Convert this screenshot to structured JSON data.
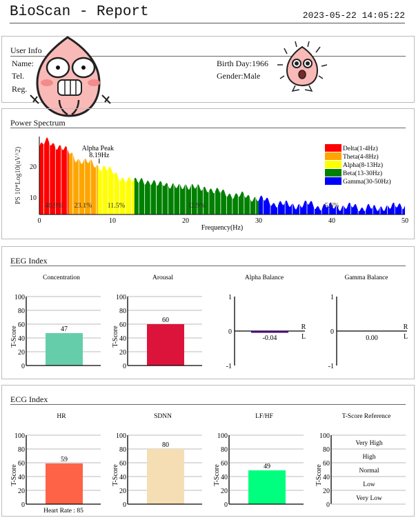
{
  "header": {
    "title": "BioScan - Report",
    "datetime": "2023-05-22 14:05:22"
  },
  "user_info": {
    "title": "User Info",
    "name_label": "Name:",
    "tel_label": "Tel.",
    "reg_label": "Reg.",
    "birthday_label": "Birth Day:1966",
    "gender_label": "Gender:Male"
  },
  "power_spectrum": {
    "title": "Power Spectrum",
    "chart_data": {
      "type": "area",
      "xlabel": "Frequency(Hz)",
      "ylabel": "PS 10*Log10(uV^2)",
      "xlim": [
        0,
        50
      ],
      "ylim": [
        4.5,
        29.5
      ],
      "xticks": [
        0,
        10,
        20,
        30,
        40,
        50
      ],
      "yticks": [
        10,
        20
      ],
      "grid": false,
      "legend_position": "top-right",
      "x": [
        0,
        1,
        2,
        3,
        4,
        5,
        6,
        7,
        8,
        9,
        10,
        11,
        12,
        13,
        14,
        15,
        16,
        17,
        18,
        19,
        20,
        21,
        22,
        23,
        24,
        25,
        26,
        27,
        28,
        29,
        30,
        31,
        32,
        33,
        34,
        35,
        36,
        37,
        38,
        39,
        40,
        41,
        42,
        43,
        44,
        45,
        46,
        47,
        48,
        49,
        50
      ],
      "y": [
        26,
        28,
        27,
        26,
        24.5,
        22.5,
        21.5,
        21,
        20,
        19.5,
        18,
        16.5,
        15.5,
        15,
        16,
        14.5,
        14,
        15,
        13.5,
        13,
        14,
        13.5,
        12.5,
        13,
        12,
        11.5,
        11,
        10.5,
        10.5,
        10,
        9.5,
        9,
        8,
        8,
        7.5,
        7.5,
        7.5,
        8,
        7,
        7,
        7,
        7,
        7,
        7,
        6.5,
        7,
        6,
        7,
        7,
        7,
        7.5
      ],
      "bands": [
        {
          "name": "Delta(1-4Hz)",
          "range": [
            0,
            4
          ],
          "color": "#ff0000",
          "percent": "46.9%"
        },
        {
          "name": "Theta(4-8Hz)",
          "range": [
            4,
            8
          ],
          "color": "#ffa500",
          "percent": "23.1%"
        },
        {
          "name": "Alpha(8-13Hz)",
          "range": [
            8,
            13
          ],
          "color": "#ffff00",
          "percent": "11.5%"
        },
        {
          "name": "Beta(13-30Hz)",
          "range": [
            13,
            30
          ],
          "color": "#008000",
          "percent": "12.9%"
        },
        {
          "name": "Gamma(30-50Hz)",
          "range": [
            30,
            50
          ],
          "color": "#0000ff",
          "percent": "5.6%"
        }
      ],
      "annotation": {
        "label": "Alpha Peak",
        "value": "8.19Hz",
        "x": 8.19
      }
    }
  },
  "eeg_index": {
    "title": "EEG Index",
    "chart_data": [
      {
        "type": "bar",
        "title": "Concentration",
        "ylabel": "T-Score",
        "ylim": [
          0,
          100
        ],
        "yticks": [
          0,
          20,
          40,
          60,
          80,
          100
        ],
        "value": 47,
        "label": "47",
        "color": "#66cdaa"
      },
      {
        "type": "bar",
        "title": "Arousal",
        "ylabel": "T-Score",
        "ylim": [
          0,
          100
        ],
        "yticks": [
          0,
          20,
          40,
          60,
          80,
          100
        ],
        "value": 60,
        "label": "60",
        "color": "#dc143c"
      },
      {
        "type": "balance",
        "title": "Alpha Balance",
        "ylim": [
          -1,
          1
        ],
        "yticks": [
          -1,
          0,
          1
        ],
        "value": -0.04,
        "label": "-0.04",
        "upper": "R",
        "lower": "L",
        "color": "#4b0082"
      },
      {
        "type": "balance",
        "title": "Gamma Balance",
        "ylim": [
          -1,
          1
        ],
        "yticks": [
          -1,
          0,
          1
        ],
        "value": 0.0,
        "label": "0.00",
        "upper": "R",
        "lower": "L",
        "color": "#4b0082"
      }
    ]
  },
  "ecg_index": {
    "title": "ECG Index",
    "chart_data": [
      {
        "type": "bar",
        "title": "HR",
        "ylabel": "T-Score",
        "ylim": [
          0,
          100
        ],
        "yticks": [
          0,
          20,
          40,
          60,
          80,
          100
        ],
        "value": 59,
        "label": "59",
        "color": "#ff6347",
        "footer": "Heart Rate : 85"
      },
      {
        "type": "bar",
        "title": "SDNN",
        "ylabel": "T-Score",
        "ylim": [
          0,
          100
        ],
        "yticks": [
          0,
          20,
          40,
          60,
          80,
          100
        ],
        "value": 80,
        "label": "80",
        "color": "#f5deb3"
      },
      {
        "type": "bar",
        "title": "LF/HF",
        "ylabel": "T-Score",
        "ylim": [
          0,
          100
        ],
        "yticks": [
          0,
          20,
          40,
          60,
          80,
          100
        ],
        "value": 49,
        "label": "49",
        "color": "#00ff7f"
      },
      {
        "type": "reference",
        "title": "T-Score Reference",
        "ylabel": "T-Score",
        "ylim": [
          0,
          100
        ],
        "yticks": [
          0,
          20,
          40,
          60,
          80,
          100
        ],
        "levels": [
          "Very High",
          "High",
          "Normal",
          "Low",
          "Very Low"
        ]
      }
    ]
  }
}
